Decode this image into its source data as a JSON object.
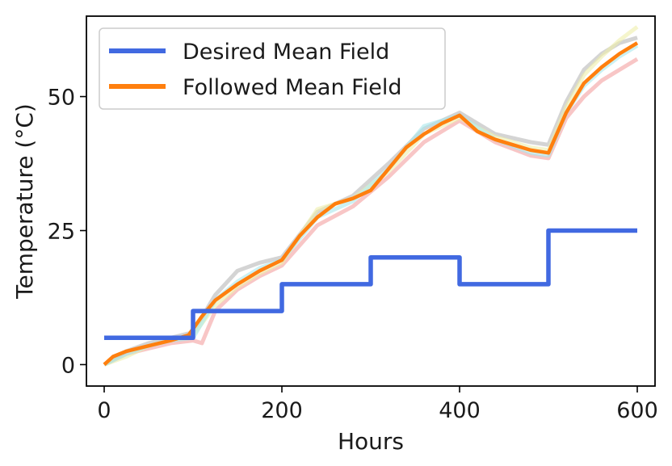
{
  "chart_data": {
    "type": "line",
    "title": "",
    "xlabel": "Hours",
    "ylabel": "Temperature (°C)",
    "xlim": [
      -20,
      620
    ],
    "ylim": [
      -4,
      65
    ],
    "xticks": [
      0,
      200,
      400,
      600
    ],
    "yticks": [
      0,
      25,
      50
    ],
    "x_tick_labels": [
      "0",
      "200",
      "400",
      "600"
    ],
    "y_tick_labels": [
      "0",
      "25",
      "50"
    ],
    "grid": false,
    "legend_position": "top-left",
    "series": [
      {
        "name": "Desired Mean Field",
        "color": "#4169e1",
        "step": true,
        "x": [
          0,
          100,
          100,
          200,
          200,
          300,
          300,
          400,
          400,
          500,
          500,
          600
        ],
        "y": [
          5,
          5,
          10,
          10,
          15,
          15,
          20,
          20,
          15,
          15,
          25,
          25
        ]
      },
      {
        "name": "Followed Mean Field",
        "color": "#ff7f0e",
        "x": [
          0,
          10,
          25,
          50,
          75,
          95,
          110,
          125,
          150,
          175,
          200,
          220,
          240,
          260,
          280,
          300,
          320,
          340,
          360,
          380,
          400,
          420,
          440,
          460,
          480,
          500,
          520,
          540,
          560,
          580,
          600
        ],
        "y": [
          0,
          1.5,
          2.5,
          3.5,
          4.5,
          5.5,
          9,
          12,
          15,
          17.5,
          19.5,
          24,
          27.5,
          30,
          31,
          32.5,
          36.5,
          40.5,
          43,
          45,
          46.5,
          43.5,
          42,
          41,
          40,
          39.5,
          47,
          52.5,
          55.5,
          58,
          60
        ]
      }
    ],
    "background_traces": [
      {
        "color": "#f4a0a0",
        "x": [
          0,
          25,
          50,
          75,
          100,
          110,
          125,
          150,
          175,
          200,
          240,
          280,
          320,
          360,
          400,
          440,
          480,
          500,
          520,
          540,
          560,
          580,
          600
        ],
        "y": [
          0,
          2,
          3,
          4,
          4.5,
          4,
          10,
          14,
          16.5,
          18.5,
          26,
          29.5,
          35,
          41.5,
          45.5,
          41.5,
          39,
          38.5,
          46,
          50,
          53,
          55,
          57
        ]
      },
      {
        "color": "#b8b8b8",
        "x": [
          0,
          25,
          50,
          75,
          100,
          125,
          150,
          175,
          200,
          240,
          280,
          320,
          360,
          400,
          440,
          480,
          500,
          520,
          540,
          560,
          580,
          600
        ],
        "y": [
          0,
          2.5,
          4,
          5,
          6,
          13,
          17.5,
          19,
          20,
          28.5,
          31.5,
          37.5,
          44,
          47,
          43,
          41.5,
          41,
          49,
          55,
          58,
          60,
          61
        ]
      },
      {
        "color": "#eeeeaa",
        "x": [
          0,
          25,
          50,
          75,
          100,
          125,
          150,
          175,
          200,
          240,
          280,
          320,
          360,
          400,
          440,
          480,
          500,
          520,
          540,
          560,
          580,
          600
        ],
        "y": [
          0,
          1.5,
          3.5,
          4.5,
          5.5,
          11,
          14.5,
          17,
          19,
          29,
          31,
          36,
          43,
          46,
          42.5,
          40.5,
          40,
          48,
          54,
          57.5,
          60.5,
          63
        ]
      },
      {
        "color": "#a8e8ec",
        "x": [
          0,
          25,
          50,
          75,
          100,
          125,
          150,
          175,
          200,
          240,
          280,
          320,
          360,
          400,
          440,
          480,
          500,
          520,
          540,
          560,
          580,
          600
        ],
        "y": [
          0,
          2,
          3.5,
          4.5,
          5,
          12,
          15.5,
          18,
          19.5,
          27.5,
          30.5,
          36.5,
          44.5,
          46.5,
          42,
          39.5,
          39,
          47,
          52,
          55,
          57.5,
          59.5
        ]
      }
    ]
  }
}
